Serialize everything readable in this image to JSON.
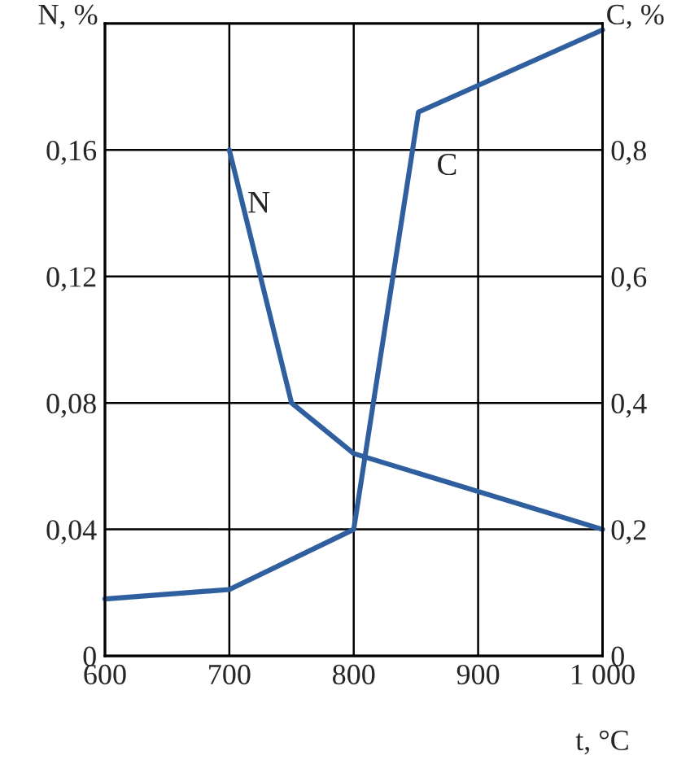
{
  "chart_data": {
    "type": "line",
    "xlabel": "t, °C",
    "ylabel": "N, %",
    "y2label": "C, %",
    "xlim": [
      600,
      1000
    ],
    "xticks": [
      600,
      700,
      800,
      900,
      {
        "value": 1000,
        "label": "1 000"
      }
    ],
    "ylim": [
      0,
      0.2
    ],
    "yticks": [
      0,
      {
        "value": 0.04,
        "label": "0,04"
      },
      {
        "value": 0.08,
        "label": "0,08"
      },
      {
        "value": 0.12,
        "label": "0,12"
      },
      {
        "value": 0.16,
        "label": "0,16"
      }
    ],
    "y2lim": [
      0,
      1.0
    ],
    "y2ticks": [
      0,
      {
        "value": 0.2,
        "label": "0,2"
      },
      {
        "value": 0.4,
        "label": "0,4"
      },
      {
        "value": 0.6,
        "label": "0,6"
      },
      {
        "value": 0.8,
        "label": "0,8"
      }
    ],
    "grid": true,
    "marker": "none",
    "line_style": "solid",
    "series": [
      {
        "name": "N",
        "color": "#2f5f9e",
        "x": [
          700,
          750,
          800,
          1000
        ],
        "values": [
          0.16,
          0.08,
          0.064,
          0.04
        ]
      },
      {
        "name": "C",
        "color": "#2f5f9e",
        "axis": "y2",
        "x": [
          600,
          700,
          800,
          852,
          1000
        ],
        "values": [
          0.09,
          0.105,
          0.2,
          0.86,
          0.99
        ]
      }
    ]
  }
}
